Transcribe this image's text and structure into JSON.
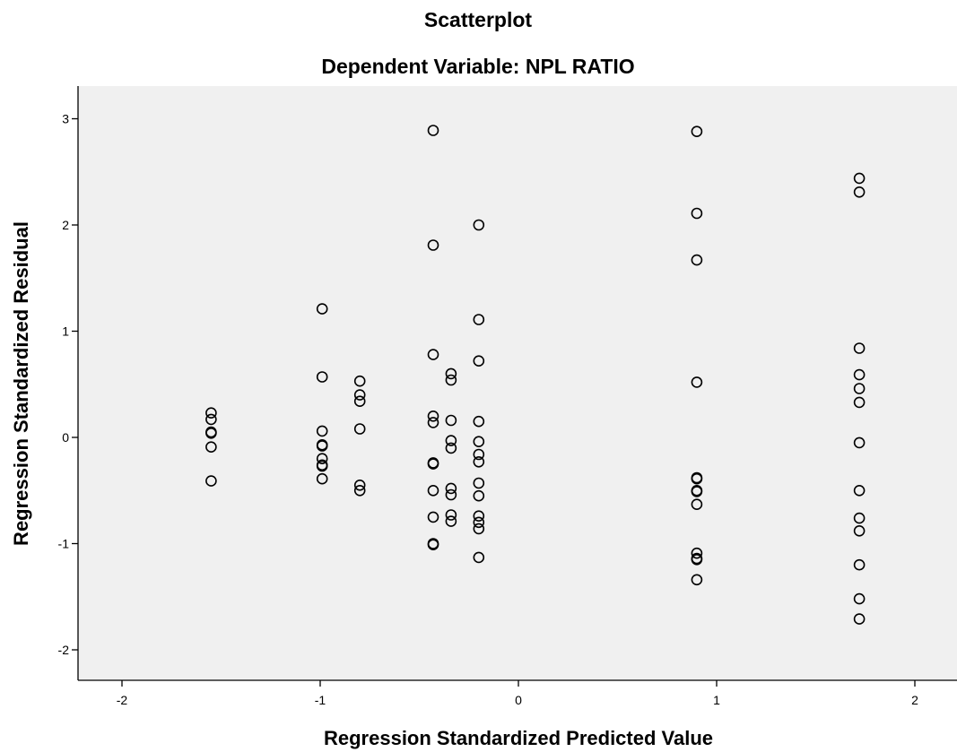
{
  "chart_data": {
    "type": "scatter",
    "title": "Scatterplot",
    "subtitle": "Dependent Variable: NPL RATIO",
    "xlabel": "Regression Standardized Predicted Value",
    "ylabel": "Regression Standardized Residual",
    "xlim": [
      -2.2,
      2.2
    ],
    "ylim": [
      -2.3,
      3.3
    ],
    "xticks": [
      -2,
      -1,
      0,
      1,
      2
    ],
    "yticks": [
      -2,
      -1,
      0,
      1,
      2,
      3
    ],
    "xtick_labels": [
      "-2",
      "-1",
      "0",
      "1",
      "2"
    ],
    "ytick_labels": [
      "-2",
      "-1",
      "0",
      "1",
      "2",
      "3"
    ],
    "grid": false,
    "plot_background": "#f0f0f0",
    "marker_color": "#000000",
    "marker": "open-circle",
    "points": [
      {
        "x": -1.55,
        "y": 0.23
      },
      {
        "x": -1.55,
        "y": 0.17
      },
      {
        "x": -1.55,
        "y": 0.05
      },
      {
        "x": -1.55,
        "y": 0.04
      },
      {
        "x": -1.55,
        "y": -0.09
      },
      {
        "x": -1.55,
        "y": -0.41
      },
      {
        "x": -0.99,
        "y": 1.21
      },
      {
        "x": -0.99,
        "y": 0.57
      },
      {
        "x": -0.99,
        "y": 0.06
      },
      {
        "x": -0.99,
        "y": -0.07
      },
      {
        "x": -0.99,
        "y": -0.08
      },
      {
        "x": -0.99,
        "y": -0.2
      },
      {
        "x": -0.99,
        "y": -0.26
      },
      {
        "x": -0.99,
        "y": -0.27
      },
      {
        "x": -0.99,
        "y": -0.39
      },
      {
        "x": -0.8,
        "y": 0.53
      },
      {
        "x": -0.8,
        "y": 0.4
      },
      {
        "x": -0.8,
        "y": 0.34
      },
      {
        "x": -0.8,
        "y": 0.08
      },
      {
        "x": -0.8,
        "y": -0.45
      },
      {
        "x": -0.8,
        "y": -0.5
      },
      {
        "x": -0.43,
        "y": 2.89
      },
      {
        "x": -0.43,
        "y": 1.81
      },
      {
        "x": -0.43,
        "y": 0.78
      },
      {
        "x": -0.43,
        "y": 0.2
      },
      {
        "x": -0.43,
        "y": 0.14
      },
      {
        "x": -0.43,
        "y": -0.24
      },
      {
        "x": -0.43,
        "y": -0.25
      },
      {
        "x": -0.43,
        "y": -0.5
      },
      {
        "x": -0.43,
        "y": -0.75
      },
      {
        "x": -0.43,
        "y": -1.0
      },
      {
        "x": -0.43,
        "y": -1.01
      },
      {
        "x": -0.34,
        "y": 0.6
      },
      {
        "x": -0.34,
        "y": 0.54
      },
      {
        "x": -0.34,
        "y": 0.16
      },
      {
        "x": -0.34,
        "y": -0.03
      },
      {
        "x": -0.34,
        "y": -0.1
      },
      {
        "x": -0.34,
        "y": -0.48
      },
      {
        "x": -0.34,
        "y": -0.54
      },
      {
        "x": -0.34,
        "y": -0.73
      },
      {
        "x": -0.34,
        "y": -0.79
      },
      {
        "x": -0.2,
        "y": 2.0
      },
      {
        "x": -0.2,
        "y": 1.11
      },
      {
        "x": -0.2,
        "y": 0.72
      },
      {
        "x": -0.2,
        "y": 0.15
      },
      {
        "x": -0.2,
        "y": -0.04
      },
      {
        "x": -0.2,
        "y": -0.16
      },
      {
        "x": -0.2,
        "y": -0.23
      },
      {
        "x": -0.2,
        "y": -0.43
      },
      {
        "x": -0.2,
        "y": -0.55
      },
      {
        "x": -0.2,
        "y": -0.74
      },
      {
        "x": -0.2,
        "y": -0.8
      },
      {
        "x": -0.2,
        "y": -0.86
      },
      {
        "x": -0.2,
        "y": -1.13
      },
      {
        "x": 0.9,
        "y": 2.88
      },
      {
        "x": 0.9,
        "y": 2.11
      },
      {
        "x": 0.9,
        "y": 1.67
      },
      {
        "x": 0.9,
        "y": 0.52
      },
      {
        "x": 0.9,
        "y": -0.38
      },
      {
        "x": 0.9,
        "y": -0.39
      },
      {
        "x": 0.9,
        "y": -0.5
      },
      {
        "x": 0.9,
        "y": -0.51
      },
      {
        "x": 0.9,
        "y": -0.63
      },
      {
        "x": 0.9,
        "y": -1.09
      },
      {
        "x": 0.9,
        "y": -1.14
      },
      {
        "x": 0.9,
        "y": -1.15
      },
      {
        "x": 0.9,
        "y": -1.34
      },
      {
        "x": 1.72,
        "y": 2.44
      },
      {
        "x": 1.72,
        "y": 2.31
      },
      {
        "x": 1.72,
        "y": 0.84
      },
      {
        "x": 1.72,
        "y": 0.59
      },
      {
        "x": 1.72,
        "y": 0.46
      },
      {
        "x": 1.72,
        "y": 0.33
      },
      {
        "x": 1.72,
        "y": -0.05
      },
      {
        "x": 1.72,
        "y": -0.5
      },
      {
        "x": 1.72,
        "y": -0.76
      },
      {
        "x": 1.72,
        "y": -0.88
      },
      {
        "x": 1.72,
        "y": -1.2
      },
      {
        "x": 1.72,
        "y": -1.52
      },
      {
        "x": 1.72,
        "y": -1.71
      }
    ]
  }
}
